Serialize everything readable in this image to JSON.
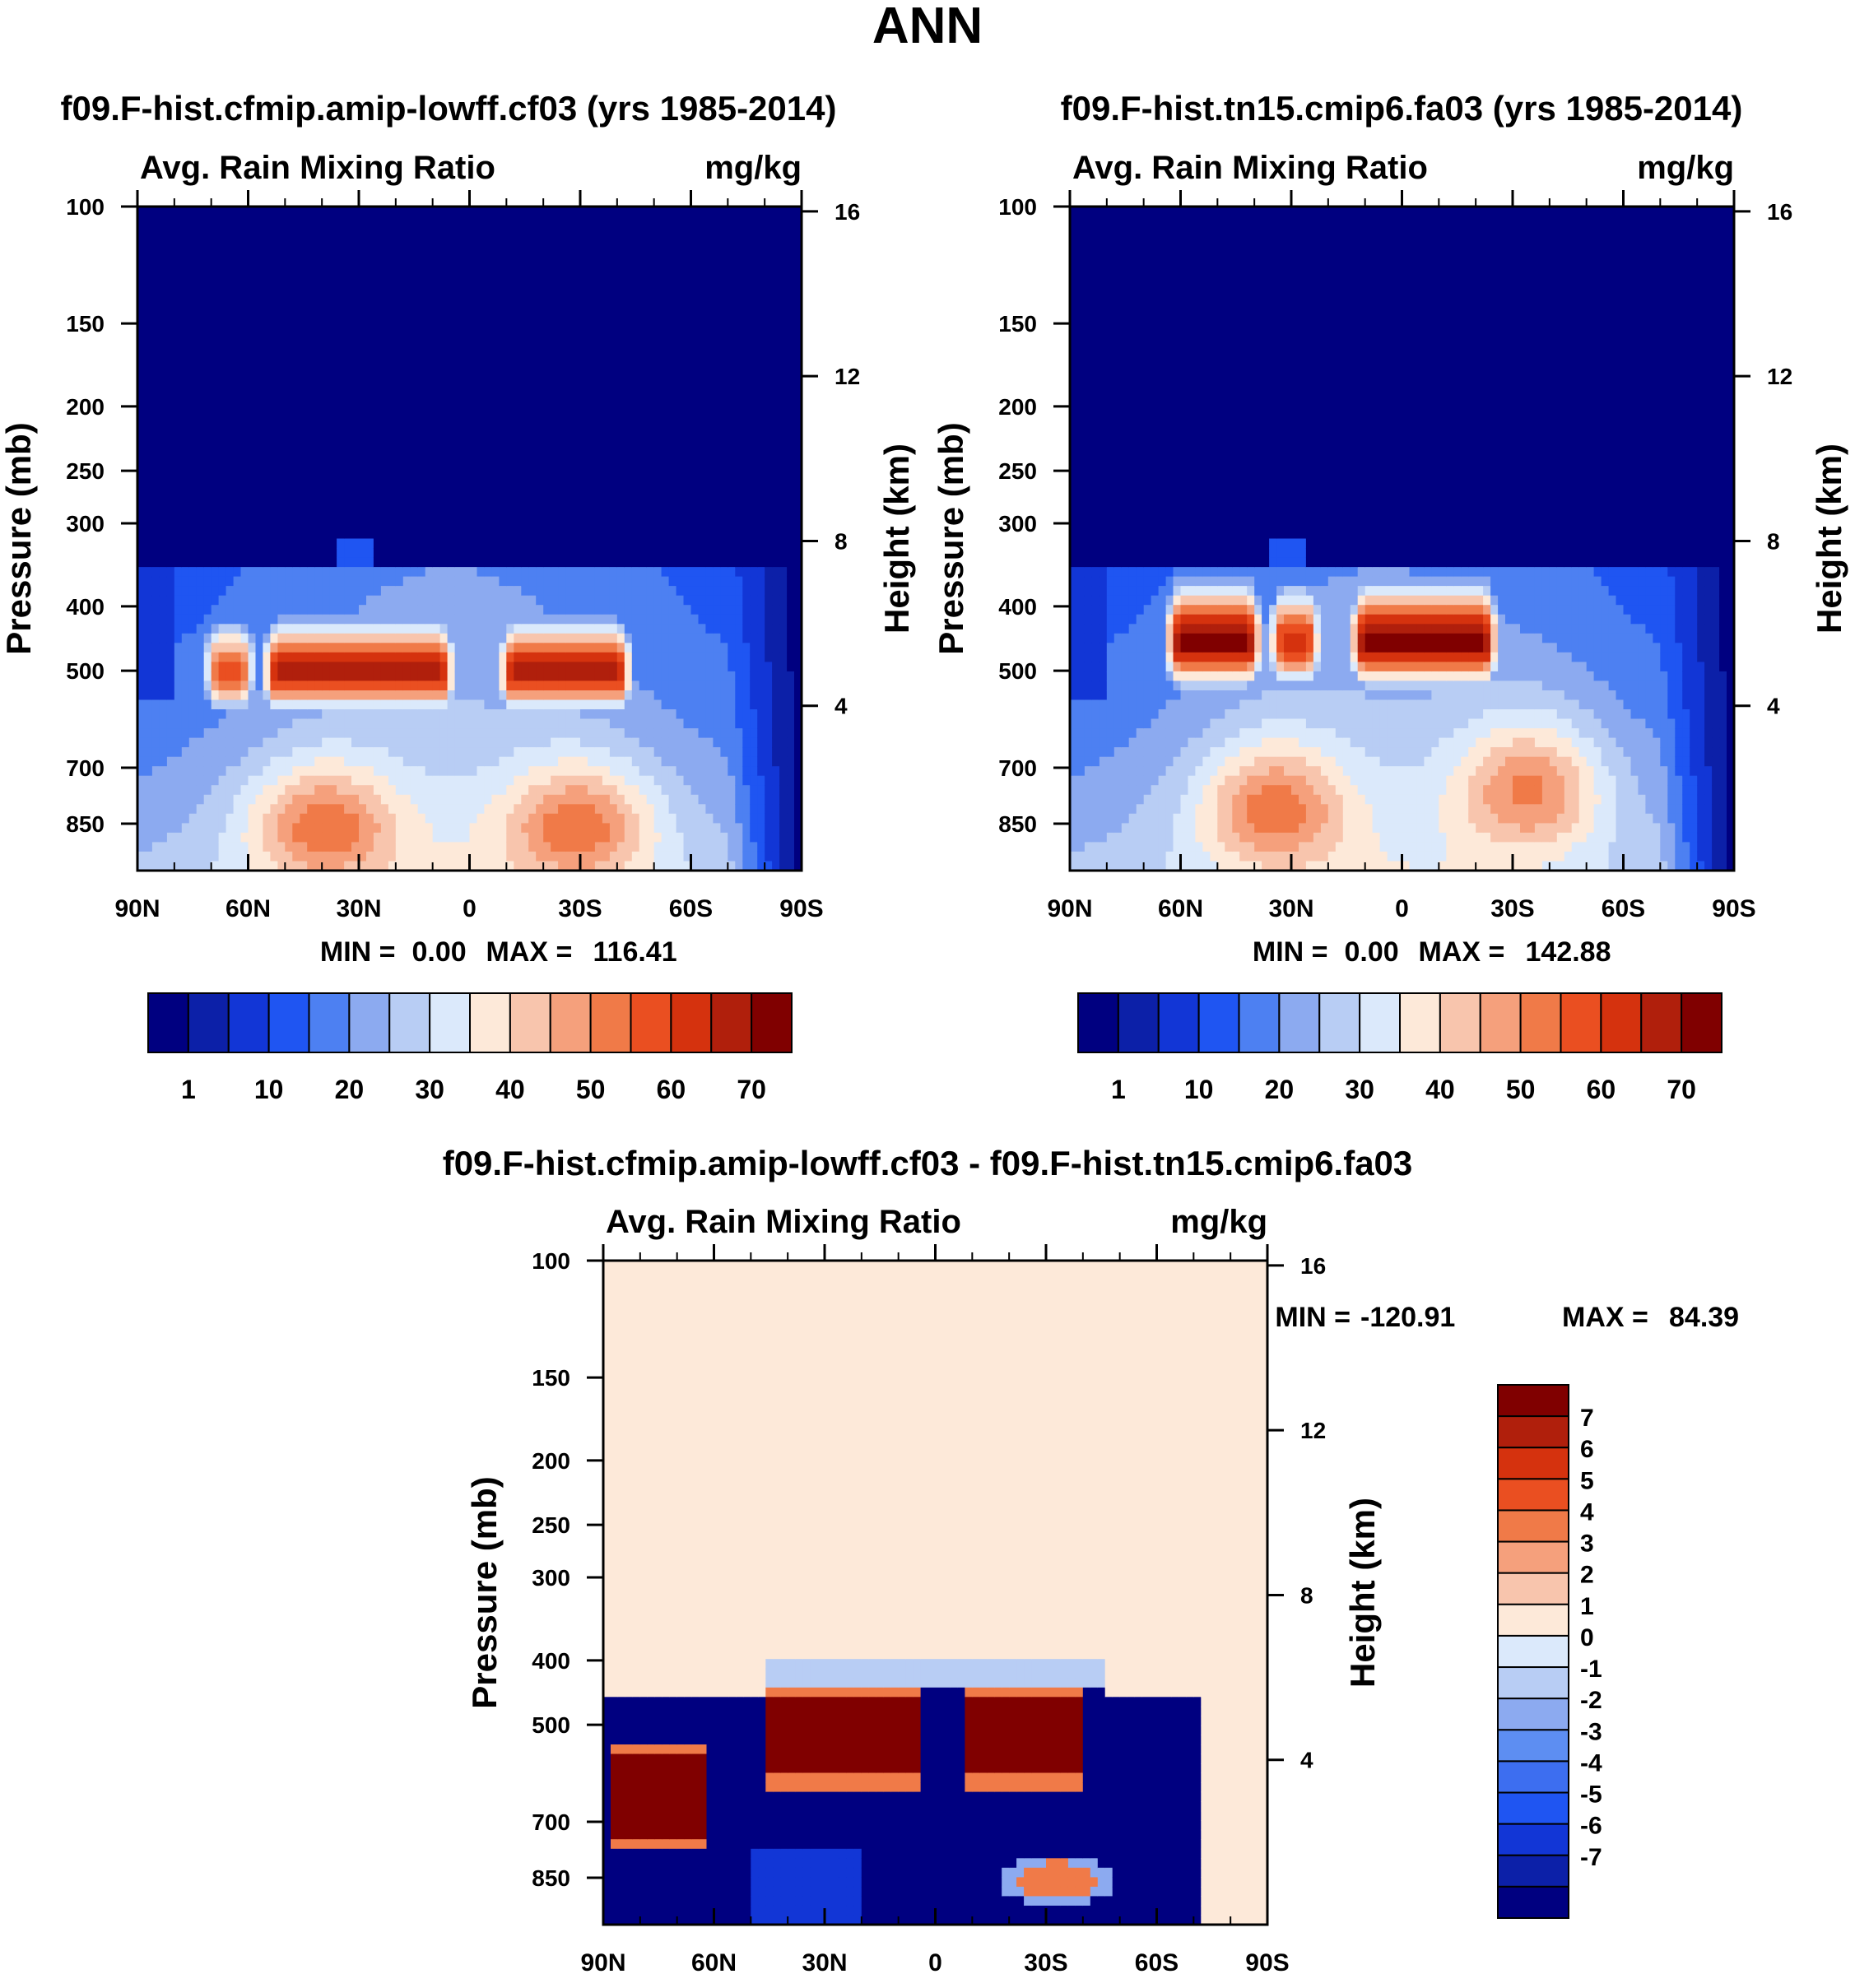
{
  "page": {
    "title": "ANN"
  },
  "colors": {
    "abs_palette": [
      "#000080",
      "#0c20a8",
      "#1236d6",
      "#1f55f2",
      "#4d80f2",
      "#8caaf0",
      "#b8cdf4",
      "#dbe9fb",
      "#fde9d9",
      "#f8c5ad",
      "#f5a07c",
      "#f07a48",
      "#ea4f21",
      "#d5320e",
      "#b01f0c",
      "#800000"
    ],
    "diff_palette": [
      "#000080",
      "#0c20a8",
      "#1236d6",
      "#1f55f2",
      "#3d6ef0",
      "#5d8ef2",
      "#8caaf0",
      "#b8cdf4",
      "#dbe9fb",
      "#fde9d9",
      "#f8c5ad",
      "#f5a07c",
      "#f07a48",
      "#ea4f21",
      "#d5320e",
      "#b01f0c",
      "#800000"
    ]
  },
  "chart_data": [
    {
      "type": "heatmap",
      "id": "panel_a",
      "title": "f09.F-hist.cfmip.amip-lowff.cf03 (yrs 1985-2014)",
      "left_string": "Avg. Rain Mixing Ratio",
      "right_string": "mg/kg",
      "ylabel": "Pressure (mb)",
      "y2label": "Height (km)",
      "x_ticks": [
        90,
        60,
        30,
        0,
        -30,
        -60,
        -90
      ],
      "x_tick_labels": [
        "90N",
        "60N",
        "30N",
        "0",
        "30S",
        "60S",
        "90S"
      ],
      "xlim": [
        90,
        -90
      ],
      "y_ticks": [
        100,
        150,
        200,
        250,
        300,
        400,
        500,
        700,
        850
      ],
      "y_tick_labels": [
        "100",
        "150",
        "200",
        "250",
        "300",
        "400",
        "500",
        "700",
        "850"
      ],
      "ylim": [
        100,
        1000
      ],
      "y2_ticks": [
        16,
        12,
        8,
        4
      ],
      "y2_tick_labels": [
        "16",
        "12",
        "8",
        "4"
      ],
      "stats": {
        "min_label": "MIN =",
        "min": "0.00",
        "max_label": "MAX =",
        "max": "116.41"
      },
      "field_summary": {
        "rain_layer_top_mb": 350,
        "rain_layer_core_mb": 500,
        "core_max_value": 116.41,
        "core_segments": [
          {
            "lat_from": 52,
            "lat_to": 8,
            "level": 14
          },
          {
            "lat_from": -12,
            "lat_to": -40,
            "level": 14
          },
          {
            "lat_from": 68,
            "lat_to": 62,
            "level": 12
          }
        ],
        "low_level_maxima": [
          {
            "lat": 40,
            "p_mb": 850,
            "level": 10
          },
          {
            "lat": -30,
            "p_mb": 850,
            "level": 10
          }
        ]
      },
      "colorbar": {
        "orientation": "horizontal",
        "tick_labels": [
          "1",
          "10",
          "20",
          "30",
          "40",
          "50",
          "60",
          "70"
        ]
      }
    },
    {
      "type": "heatmap",
      "id": "panel_b",
      "title": "f09.F-hist.tn15.cmip6.fa03 (yrs 1985-2014)",
      "left_string": "Avg. Rain Mixing Ratio",
      "right_string": "mg/kg",
      "ylabel": "Pressure (mb)",
      "y2label": "Height (km)",
      "x_ticks": [
        90,
        60,
        30,
        0,
        -30,
        -60,
        -90
      ],
      "x_tick_labels": [
        "90N",
        "60N",
        "30N",
        "0",
        "30S",
        "60S",
        "90S"
      ],
      "xlim": [
        90,
        -90
      ],
      "y_ticks": [
        100,
        150,
        200,
        250,
        300,
        400,
        500,
        700,
        850
      ],
      "y_tick_labels": [
        "100",
        "150",
        "200",
        "250",
        "300",
        "400",
        "500",
        "700",
        "850"
      ],
      "ylim": [
        100,
        1000
      ],
      "y2_ticks": [
        16,
        12,
        8,
        4
      ],
      "y2_tick_labels": [
        "16",
        "12",
        "8",
        "4"
      ],
      "stats": {
        "min_label": "MIN =",
        "min": "0.00",
        "max_label": "MAX =",
        "max": "142.88"
      },
      "field_summary": {
        "rain_layer_top_mb": 350,
        "rain_layer_core_mb": 450,
        "core_max_value": 142.88,
        "core_segments": [
          {
            "lat_from": 60,
            "lat_to": 42,
            "level": 15
          },
          {
            "lat_from": 10,
            "lat_to": -22,
            "level": 15
          },
          {
            "lat_from": 32,
            "lat_to": 26,
            "level": 13
          }
        ],
        "low_level_maxima": [
          {
            "lat": 35,
            "p_mb": 800,
            "level": 10
          },
          {
            "lat": -35,
            "p_mb": 750,
            "level": 10
          }
        ]
      },
      "colorbar": {
        "orientation": "horizontal",
        "tick_labels": [
          "1",
          "10",
          "20",
          "30",
          "40",
          "50",
          "60",
          "70"
        ]
      }
    },
    {
      "type": "heatmap",
      "id": "panel_c",
      "title": "f09.F-hist.cfmip.amip-lowff.cf03 - f09.F-hist.tn15.cmip6.fa03",
      "left_string": "Avg. Rain Mixing Ratio",
      "right_string": "mg/kg",
      "ylabel": "Pressure (mb)",
      "y2label": "Height (km)",
      "x_ticks": [
        90,
        60,
        30,
        0,
        -30,
        -60,
        -90
      ],
      "x_tick_labels": [
        "90N",
        "60N",
        "30N",
        "0",
        "30S",
        "60S",
        "90S"
      ],
      "xlim": [
        90,
        -90
      ],
      "y_ticks": [
        100,
        150,
        200,
        250,
        300,
        400,
        500,
        700,
        850
      ],
      "y_tick_labels": [
        "100",
        "150",
        "200",
        "250",
        "300",
        "400",
        "500",
        "700",
        "850"
      ],
      "ylim": [
        100,
        1000
      ],
      "y2_ticks": [
        16,
        12,
        8,
        4
      ],
      "y2_tick_labels": [
        "16",
        "12",
        "8",
        "4"
      ],
      "stats": {
        "min_label": "MIN =",
        "min": "-120.91",
        "max_label": "MAX =",
        "max": "84.39"
      },
      "field_summary": {
        "background_level": 9,
        "negative_band_mb": [
          400,
          720
        ],
        "positive_segments": [
          {
            "lat_from": 46,
            "lat_to": 5,
            "level": 16
          },
          {
            "lat_from": -8,
            "lat_to": -40,
            "level": 16
          },
          {
            "lat_from": 88,
            "lat_to": 62,
            "level": 16
          }
        ],
        "low_level_feature": {
          "lat": -33,
          "p_mb": 860,
          "level": 12
        }
      },
      "colorbar": {
        "orientation": "vertical",
        "tick_labels": [
          "7",
          "6",
          "5",
          "4",
          "3",
          "2",
          "1",
          "0",
          "-1",
          "-2",
          "-3",
          "-4",
          "-5",
          "-6",
          "-7"
        ]
      }
    }
  ]
}
